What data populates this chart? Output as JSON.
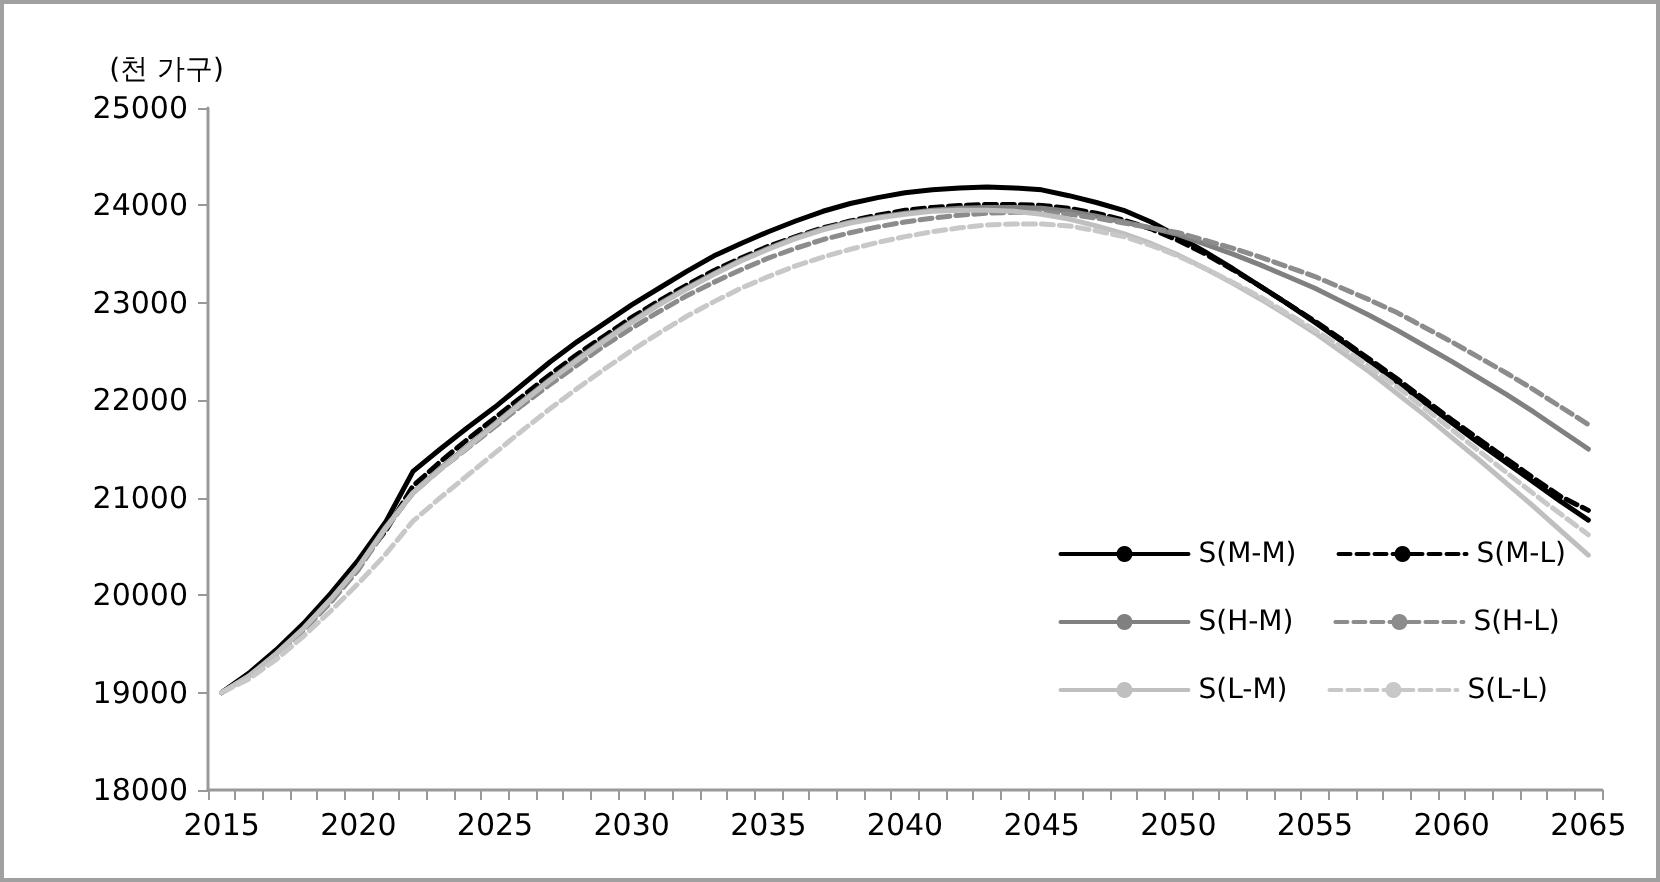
{
  "chart_data": {
    "type": "line",
    "ylabel": "(천 가구)",
    "categories": [
      "2015",
      null,
      null,
      null,
      null,
      "2020",
      null,
      null,
      null,
      null,
      "2025",
      null,
      null,
      null,
      null,
      "2030",
      null,
      null,
      null,
      null,
      "2035",
      null,
      null,
      null,
      null,
      "2040",
      null,
      null,
      null,
      null,
      "2045",
      null,
      null,
      null,
      null,
      "2050",
      null,
      null,
      null,
      null,
      "2055",
      null,
      null,
      null,
      null,
      "2060",
      null,
      null,
      null,
      null,
      "2065"
    ],
    "ylim": [
      18000,
      25000
    ],
    "yticks": [
      18000,
      19000,
      20000,
      21000,
      22000,
      23000,
      24000,
      25000
    ],
    "grid": false,
    "legend": "bottom right",
    "marker": "none",
    "series": [
      {
        "name": "S(M-M)",
        "color": "#000000",
        "line_style": "solid",
        "values": [
          19000,
          19200,
          19440,
          19710,
          20020,
          20360,
          20750,
          21270,
          21500,
          21720,
          21930,
          22160,
          22390,
          22600,
          22790,
          22980,
          23150,
          23320,
          23480,
          23610,
          23730,
          23840,
          23940,
          24020,
          24080,
          24130,
          24160,
          24180,
          24190,
          24180,
          24160,
          24100,
          24030,
          23950,
          23830,
          23680,
          23520,
          23350,
          23170,
          22990,
          22800,
          22600,
          22400,
          22190,
          21980,
          21770,
          21560,
          21360,
          21160,
          20960,
          20770
        ]
      },
      {
        "name": "S(M-L)",
        "color": "#000000",
        "line_style": "dashed",
        "values": [
          19000,
          19180,
          19410,
          19680,
          19980,
          20310,
          20660,
          21120,
          21370,
          21600,
          21820,
          22040,
          22260,
          22470,
          22660,
          22850,
          23020,
          23180,
          23330,
          23460,
          23580,
          23680,
          23770,
          23840,
          23900,
          23950,
          23980,
          24000,
          24010,
          24010,
          24000,
          23970,
          23920,
          23850,
          23760,
          23640,
          23500,
          23340,
          23170,
          22990,
          22810,
          22620,
          22420,
          22220,
          22010,
          21800,
          21600,
          21400,
          21200,
          21010,
          20870
        ]
      },
      {
        "name": "S(H-M)",
        "color": "#808080",
        "line_style": "solid",
        "values": [
          19000,
          19170,
          19400,
          19660,
          19960,
          20290,
          20700,
          21050,
          21300,
          21530,
          21760,
          21990,
          22210,
          22420,
          22620,
          22810,
          22990,
          23150,
          23300,
          23440,
          23560,
          23670,
          23760,
          23830,
          23880,
          23920,
          23950,
          23970,
          23980,
          23980,
          23970,
          23940,
          23890,
          23830,
          23770,
          23700,
          23600,
          23500,
          23390,
          23270,
          23150,
          23010,
          22870,
          22720,
          22560,
          22400,
          22230,
          22060,
          21880,
          21690,
          21500
        ]
      },
      {
        "name": "S(H-L)",
        "color": "#8c8c8c",
        "line_style": "dashed",
        "values": [
          19000,
          19160,
          19380,
          19640,
          19930,
          20260,
          20680,
          21050,
          21290,
          21510,
          21730,
          21950,
          22160,
          22360,
          22560,
          22740,
          22910,
          23070,
          23210,
          23340,
          23460,
          23560,
          23650,
          23720,
          23780,
          23830,
          23870,
          23900,
          23920,
          23930,
          23930,
          23910,
          23870,
          23820,
          23770,
          23720,
          23640,
          23560,
          23470,
          23370,
          23270,
          23150,
          23030,
          22900,
          22750,
          22600,
          22440,
          22280,
          22110,
          21930,
          21750
        ]
      },
      {
        "name": "S(L-M)",
        "color": "#bfbfbf",
        "line_style": "solid",
        "values": [
          19000,
          19170,
          19400,
          19660,
          19960,
          20290,
          20690,
          21050,
          21290,
          21520,
          21750,
          21980,
          22200,
          22410,
          22610,
          22800,
          22980,
          23140,
          23290,
          23430,
          23550,
          23660,
          23750,
          23820,
          23870,
          23910,
          23940,
          23950,
          23950,
          23940,
          23910,
          23860,
          23790,
          23710,
          23610,
          23490,
          23350,
          23200,
          23040,
          22870,
          22690,
          22490,
          22290,
          22070,
          21850,
          21620,
          21390,
          21150,
          20910,
          20660,
          20410
        ]
      },
      {
        "name": "S(L-L)",
        "color": "#c8c8c8",
        "line_style": "dashed",
        "values": [
          19000,
          19140,
          19340,
          19580,
          19840,
          20120,
          20420,
          20760,
          21000,
          21230,
          21460,
          21690,
          21910,
          22120,
          22320,
          22510,
          22690,
          22860,
          23010,
          23150,
          23270,
          23380,
          23470,
          23550,
          23620,
          23680,
          23730,
          23770,
          23800,
          23810,
          23810,
          23790,
          23740,
          23680,
          23590,
          23480,
          23350,
          23210,
          23060,
          22890,
          22720,
          22540,
          22340,
          22140,
          21920,
          21700,
          21480,
          21260,
          21040,
          20830,
          20620
        ]
      }
    ]
  }
}
